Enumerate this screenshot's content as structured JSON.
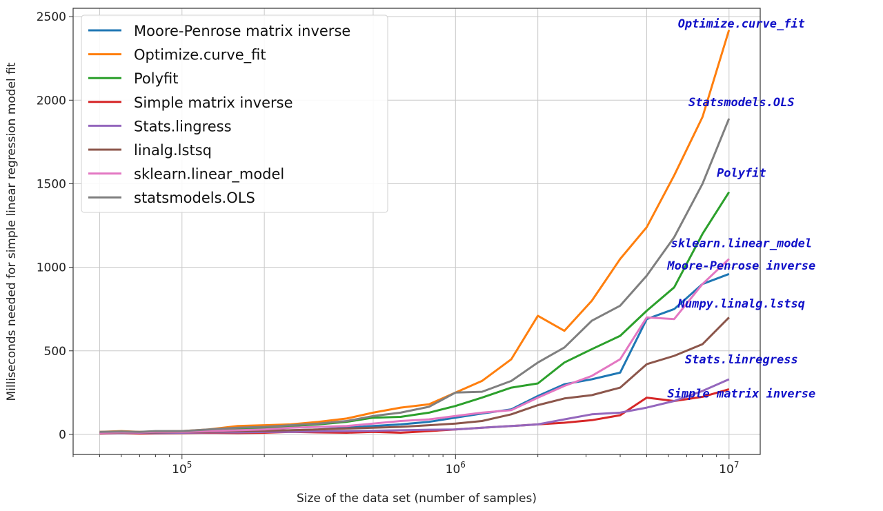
{
  "chart_data": {
    "type": "line",
    "xlabel": "Size of the data set (number of samples)",
    "ylabel": "Milliseconds needed for simple linear regression model fit",
    "xscale": "log",
    "xlim": [
      40000,
      13000000
    ],
    "ylim": [
      -120,
      2550
    ],
    "x_ticks": [
      {
        "value": 100000,
        "base": "10",
        "exp": "5"
      },
      {
        "value": 1000000,
        "base": "10",
        "exp": "6"
      },
      {
        "value": 10000000,
        "base": "10",
        "exp": "7"
      }
    ],
    "y_ticks": [
      0,
      500,
      1000,
      1500,
      2000,
      2500
    ],
    "grid": true,
    "legend_position": "top-left",
    "x": [
      50000,
      60000,
      70000,
      80000,
      100000,
      125000,
      160000,
      200000,
      250000,
      315000,
      400000,
      500000,
      630000,
      800000,
      1000000,
      1250000,
      1600000,
      2000000,
      2500000,
      3150000,
      4000000,
      5000000,
      6300000,
      8000000,
      10000000
    ],
    "series": [
      {
        "name": "Moore-Penrose matrix inverse",
        "color": "#1f77b4",
        "values": [
          10,
          10,
          12,
          12,
          15,
          15,
          20,
          20,
          25,
          30,
          40,
          50,
          60,
          75,
          100,
          125,
          150,
          230,
          300,
          330,
          370,
          690,
          750,
          900,
          960
        ]
      },
      {
        "name": "Optimize.curve_fit",
        "color": "#ff7f0e",
        "values": [
          15,
          20,
          15,
          18,
          20,
          30,
          50,
          55,
          60,
          75,
          95,
          130,
          160,
          180,
          250,
          320,
          450,
          710,
          620,
          800,
          1050,
          1240,
          1550,
          1900,
          2420
        ]
      },
      {
        "name": "Polyfit",
        "color": "#2ca02c",
        "values": [
          10,
          12,
          12,
          15,
          15,
          25,
          35,
          40,
          50,
          60,
          75,
          100,
          105,
          130,
          170,
          220,
          280,
          305,
          430,
          510,
          590,
          740,
          880,
          1200,
          1450
        ]
      },
      {
        "name": "Simple matrix inverse",
        "color": "#d62728",
        "values": [
          5,
          8,
          5,
          6,
          8,
          10,
          8,
          10,
          15,
          12,
          10,
          15,
          10,
          20,
          30,
          40,
          50,
          60,
          70,
          85,
          115,
          220,
          200,
          225,
          270
        ]
      },
      {
        "name": "Stats.lingress",
        "color": "#9467bd",
        "values": [
          8,
          8,
          10,
          8,
          10,
          12,
          12,
          15,
          15,
          18,
          20,
          22,
          25,
          28,
          30,
          40,
          50,
          60,
          90,
          120,
          130,
          160,
          200,
          260,
          330
        ]
      },
      {
        "name": "linalg.lstsq",
        "color": "#8c564b",
        "values": [
          10,
          10,
          12,
          12,
          15,
          15,
          20,
          22,
          25,
          30,
          35,
          40,
          45,
          55,
          65,
          80,
          120,
          175,
          215,
          235,
          280,
          420,
          470,
          540,
          700
        ]
      },
      {
        "name": "sklearn.linear_model",
        "color": "#e377c2",
        "values": [
          10,
          12,
          12,
          15,
          15,
          20,
          25,
          30,
          40,
          45,
          50,
          65,
          80,
          90,
          110,
          130,
          145,
          220,
          290,
          350,
          450,
          700,
          690,
          900,
          1050
        ]
      },
      {
        "name": "statsmodels.OLS",
        "color": "#7f7f7f",
        "values": [
          15,
          18,
          15,
          20,
          20,
          30,
          40,
          45,
          55,
          65,
          80,
          110,
          130,
          165,
          250,
          255,
          320,
          430,
          520,
          680,
          770,
          950,
          1180,
          1500,
          1890
        ]
      }
    ],
    "annotations": [
      {
        "text": "Optimize.curve_fit",
        "x": 10000000,
        "y": 2435
      },
      {
        "text": "Statsmodels.OLS",
        "x": 10000000,
        "y": 1965
      },
      {
        "text": "Polyfit",
        "x": 10000000,
        "y": 1540
      },
      {
        "text": "sklearn.linear_model",
        "x": 10000000,
        "y": 1120
      },
      {
        "text": "Moore-Penrose inverse",
        "x": 10000000,
        "y": 985
      },
      {
        "text": "Numpy.linalg.lstsq",
        "x": 10000000,
        "y": 760
      },
      {
        "text": "Stats.linregress",
        "x": 10000000,
        "y": 425
      },
      {
        "text": "Simple matrix inverse",
        "x": 10000000,
        "y": 220
      }
    ]
  }
}
